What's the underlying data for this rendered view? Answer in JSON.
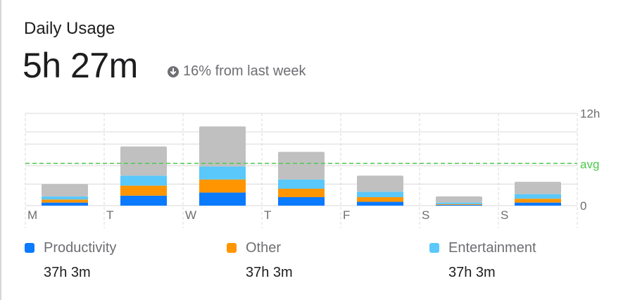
{
  "header": {
    "title": "Daily Usage",
    "total": "5h 27m",
    "change_text": "16% from last week",
    "change_icon": "arrow-down-circle-icon"
  },
  "colors": {
    "productivity": "#0a7aff",
    "other": "#ff9500",
    "entertainment": "#5ac8fa",
    "remaining": "#c0c0c0",
    "avg": "#4cc94c",
    "grid": "#d9d9d9"
  },
  "chart_data": {
    "type": "bar",
    "stacked": true,
    "categories": [
      "M",
      "T",
      "W",
      "T",
      "F",
      "S",
      "S"
    ],
    "y_tick_labels": [
      "12h",
      "avg",
      "0"
    ],
    "ylim": [
      0,
      12
    ],
    "avg": 5.5,
    "grid": true,
    "series": [
      {
        "name": "Productivity",
        "color": "#0a7aff",
        "values": [
          0.4,
          1.3,
          1.7,
          1.1,
          0.5,
          0.1,
          0.4
        ]
      },
      {
        "name": "Other",
        "color": "#ff9500",
        "values": [
          0.4,
          1.3,
          1.7,
          1.1,
          0.6,
          0.1,
          0.5
        ]
      },
      {
        "name": "Entertainment",
        "color": "#5ac8fa",
        "values": [
          0.4,
          1.3,
          1.7,
          1.2,
          0.7,
          0.2,
          0.6
        ]
      },
      {
        "name": "",
        "color": "#c0c0c0",
        "values": [
          1.6,
          3.8,
          5.2,
          3.6,
          2.1,
          0.8,
          1.6
        ]
      }
    ]
  },
  "legend": [
    {
      "label": "Productivity",
      "value": "37h 3m",
      "color": "#0a7aff"
    },
    {
      "label": "Other",
      "value": "37h 3m",
      "color": "#ff9500"
    },
    {
      "label": "Entertainment",
      "value": "37h 3m",
      "color": "#5ac8fa"
    }
  ]
}
